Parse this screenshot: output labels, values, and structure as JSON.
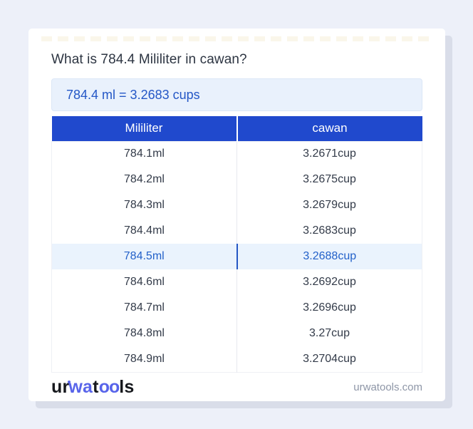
{
  "page": {
    "title": "What is 784.4 Mililiter in cawan?"
  },
  "result": {
    "text": "784.4 ml = 3.2683 cups"
  },
  "table": {
    "headers": [
      "Mililiter",
      "cawan"
    ],
    "rows": [
      {
        "ml": "784.1ml",
        "cawan": "3.2671cup"
      },
      {
        "ml": "784.2ml",
        "cawan": "3.2675cup"
      },
      {
        "ml": "784.3ml",
        "cawan": "3.2679cup"
      },
      {
        "ml": "784.4ml",
        "cawan": "3.2683cup"
      },
      {
        "ml": "784.5ml",
        "cawan": "3.2688cup"
      },
      {
        "ml": "784.6ml",
        "cawan": "3.2692cup"
      },
      {
        "ml": "784.7ml",
        "cawan": "3.2696cup"
      },
      {
        "ml": "784.8ml",
        "cawan": "3.27cup"
      },
      {
        "ml": "784.9ml",
        "cawan": "3.2704cup"
      }
    ],
    "highlighted_index": 4
  },
  "footer": {
    "logo": {
      "seg1": "ur",
      "seg2": "wa",
      "seg3": "t",
      "seg4": "oo",
      "seg5": "ls"
    },
    "domain": "urwatools.com"
  },
  "colors": {
    "page_bg": "#edf0f9",
    "header_blue": "#2049cd",
    "result_text_blue": "#2457c6",
    "result_bg": "#e9f1fc",
    "highlight_row_bg": "#eaf3fd",
    "highlight_text_blue": "#2361c9",
    "logo_blue": "#5864ea",
    "domain_gray": "#8e96a7"
  }
}
